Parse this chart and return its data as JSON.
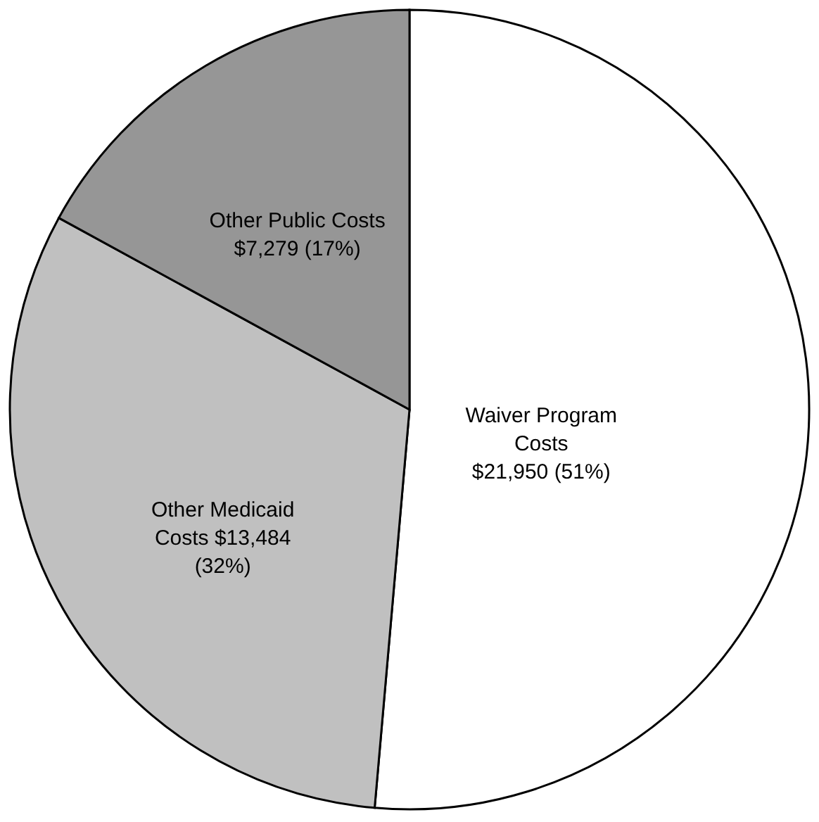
{
  "chart_data": {
    "type": "pie",
    "categories": [
      "Waiver Program Costs",
      "Other Medicaid Costs",
      "Other Public Costs"
    ],
    "values": [
      21950,
      13484,
      7279
    ],
    "value_labels": [
      "$21,950 (51%)",
      "$13,484 (32%)",
      "$7,279 (17%)"
    ],
    "colors": [
      "#ffffff",
      "#c0c0c0",
      "#969696"
    ],
    "legend": false
  }
}
